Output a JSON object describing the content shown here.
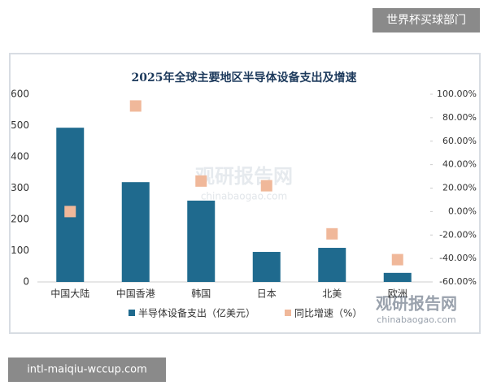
{
  "header_label": "世界杯买球部门",
  "footer_label": "intl-maiqiu-wccup.com",
  "watermark": {
    "name": "观研报告网",
    "url": "chinabaogao.com"
  },
  "chart_data": {
    "type": "bar",
    "title": "2025年全球主要地区半导体设备支出及增速",
    "categories": [
      "中国大陆",
      "中国香港",
      "韩国",
      "日本",
      "北美",
      "欧洲"
    ],
    "series": [
      {
        "name": "半导体设备支出（亿美元）",
        "type": "bar",
        "color": "#1f6a8e",
        "values": [
          493,
          319,
          260,
          96,
          109,
          29
        ]
      },
      {
        "name": "同比增速（%）",
        "type": "scatter",
        "axis": "y2",
        "color": "#f0b89a",
        "values": [
          0,
          90,
          26,
          22,
          -19,
          -41
        ]
      }
    ],
    "ylim": [
      0,
      600
    ],
    "yticks": [
      0,
      100,
      200,
      300,
      400,
      500,
      600
    ],
    "y2lim": [
      -60,
      100
    ],
    "y2ticks": [
      {
        "value": -60,
        "label": "-60.00%"
      },
      {
        "value": -40,
        "label": "-40.00%"
      },
      {
        "value": -20,
        "label": "-20.00%"
      },
      {
        "value": 0,
        "label": "0.00%"
      },
      {
        "value": 20,
        "label": "20.00%"
      },
      {
        "value": 40,
        "label": "40.00%"
      },
      {
        "value": 60,
        "label": "60.00%"
      },
      {
        "value": 80,
        "label": "80.00%"
      },
      {
        "value": 100,
        "label": "100.00%"
      }
    ],
    "grid": false,
    "legend": "bottom"
  }
}
